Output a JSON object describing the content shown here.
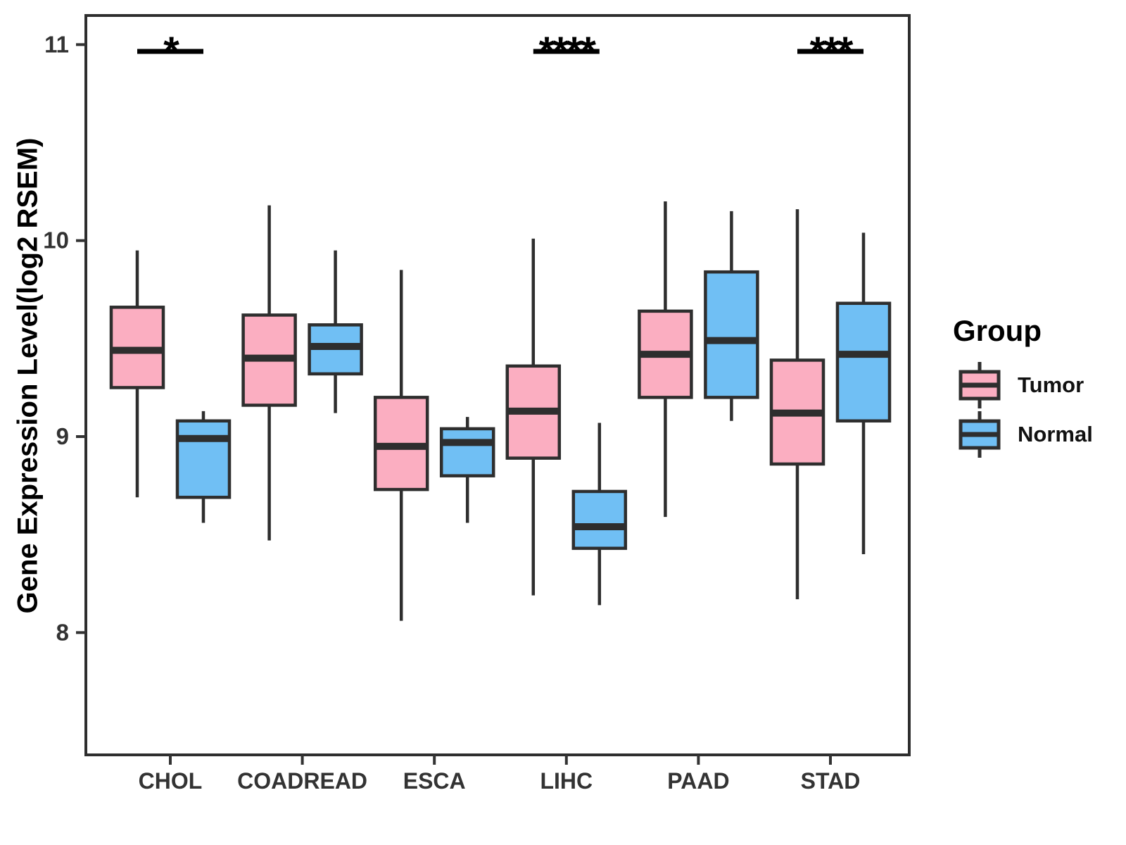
{
  "figure": {
    "background": "#ffffff"
  },
  "y_axis": {
    "title": "Gene Expression Level(log2 RSEM)",
    "ticks": [
      "11",
      "10",
      "9",
      "8"
    ],
    "tick_values": [
      11,
      10,
      9,
      8
    ]
  },
  "x_axis": {
    "categories": [
      "CHOL",
      "COADREAD",
      "ESCA",
      "LIHC",
      "PAAD",
      "STAD"
    ]
  },
  "legend": {
    "title": "Group",
    "items": [
      {
        "label": "Tumor",
        "color": "#FBAEC1"
      },
      {
        "label": "Normal",
        "color": "#70BFF4"
      }
    ]
  },
  "colors": {
    "tumor_fill": "#FBAEC1",
    "normal_fill": "#70BFF4",
    "box_stroke": "#2E2E2E",
    "axis_text": "#333333",
    "significance": "#000000"
  },
  "chart_data": {
    "type": "boxplot",
    "title": "",
    "xlabel": "",
    "ylabel": "Gene Expression Level(log2 RSEM)",
    "ylim": [
      7.37,
      11.15
    ],
    "yticks": [
      8,
      9,
      10,
      11
    ],
    "grid": false,
    "legend_position": "right",
    "categories": [
      "CHOL",
      "COADREAD",
      "ESCA",
      "LIHC",
      "PAAD",
      "STAD"
    ],
    "series": [
      {
        "name": "Tumor",
        "color": "#FBAEC1",
        "boxes": [
          {
            "category": "CHOL",
            "min": 8.69,
            "q1": 9.25,
            "median": 9.44,
            "q3": 9.66,
            "max": 9.95
          },
          {
            "category": "COADREAD",
            "min": 8.47,
            "q1": 9.16,
            "median": 9.4,
            "q3": 9.62,
            "max": 10.18
          },
          {
            "category": "ESCA",
            "min": 8.06,
            "q1": 8.73,
            "median": 8.95,
            "q3": 9.2,
            "max": 9.85
          },
          {
            "category": "LIHC",
            "min": 8.19,
            "q1": 8.89,
            "median": 9.13,
            "q3": 9.36,
            "max": 10.01
          },
          {
            "category": "PAAD",
            "min": 8.59,
            "q1": 9.2,
            "median": 9.42,
            "q3": 9.64,
            "max": 10.2
          },
          {
            "category": "STAD",
            "min": 8.17,
            "q1": 8.86,
            "median": 9.12,
            "q3": 9.39,
            "max": 10.16
          }
        ]
      },
      {
        "name": "Normal",
        "color": "#70BFF4",
        "boxes": [
          {
            "category": "CHOL",
            "min": 8.56,
            "q1": 8.69,
            "median": 8.99,
            "q3": 9.08,
            "max": 9.13
          },
          {
            "category": "COADREAD",
            "min": 9.12,
            "q1": 9.32,
            "median": 9.46,
            "q3": 9.57,
            "max": 9.95
          },
          {
            "category": "ESCA",
            "min": 8.56,
            "q1": 8.8,
            "median": 8.97,
            "q3": 9.04,
            "max": 9.1
          },
          {
            "category": "LIHC",
            "min": 8.14,
            "q1": 8.43,
            "median": 8.54,
            "q3": 8.72,
            "max": 9.07
          },
          {
            "category": "PAAD",
            "min": 9.08,
            "q1": 9.2,
            "median": 9.49,
            "q3": 9.84,
            "max": 10.15
          },
          {
            "category": "STAD",
            "min": 8.4,
            "q1": 9.08,
            "median": 9.42,
            "q3": 9.68,
            "max": 10.04
          }
        ]
      }
    ],
    "significance": [
      {
        "category": "CHOL",
        "label": "*"
      },
      {
        "category": "LIHC",
        "label": "****"
      },
      {
        "category": "STAD",
        "label": "***"
      }
    ]
  }
}
